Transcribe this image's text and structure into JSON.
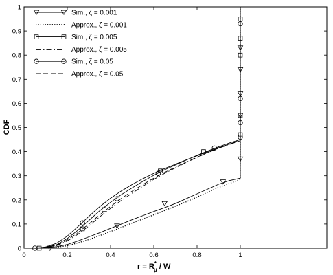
{
  "chart_data": {
    "type": "line",
    "title": "",
    "xlabel": {
      "main": "r = R",
      "sup": "*",
      "sub": "μ",
      "tail": " / W"
    },
    "ylabel": "CDF",
    "xlim": [
      0,
      1.4
    ],
    "ylim": [
      0,
      1
    ],
    "xticks": [
      0,
      0.2,
      0.4,
      0.6,
      0.8,
      1
    ],
    "xtick_labels": [
      "0",
      "0.2",
      "0.4",
      "0.6",
      "0.8",
      "1"
    ],
    "yticks": [
      0,
      0.1,
      0.2,
      0.3,
      0.4,
      0.5,
      0.6,
      0.7,
      0.8,
      0.9,
      1
    ],
    "ytick_labels": [
      "0",
      "0.1",
      "0.2",
      "0.3",
      "0.4",
      "0.5",
      "0.6",
      "0.7",
      "0.8",
      "0.9",
      "1"
    ],
    "grid": false,
    "legend_position": "top-left",
    "series": [
      {
        "name": "Sim., ζ = 0.001",
        "style": "solid",
        "marker": "triangle-down",
        "x": [
          0.05,
          0.1,
          0.15,
          0.2,
          0.25,
          0.3,
          0.35,
          0.4,
          0.45,
          0.5,
          0.55,
          0.6,
          0.65,
          0.7,
          0.75,
          0.8,
          0.85,
          0.9,
          0.95,
          1.0,
          1.0,
          1.0,
          1.0,
          1.0,
          1.0,
          1.0,
          1.0,
          1.0,
          1.0,
          1.0,
          1.0,
          1.0
        ],
        "y": [
          0.0,
          0.002,
          0.006,
          0.015,
          0.03,
          0.047,
          0.064,
          0.082,
          0.1,
          0.118,
          0.135,
          0.152,
          0.168,
          0.185,
          0.205,
          0.225,
          0.245,
          0.265,
          0.28,
          0.29,
          0.37,
          0.45,
          0.55,
          0.64,
          0.73,
          0.83,
          0.92,
          1.0,
          1.0,
          1.0,
          1.0,
          1.0
        ],
        "marker_x": [
          0.12,
          0.43,
          0.65,
          0.92,
          1.0,
          1.0,
          1.0,
          1.0,
          1.0
        ],
        "marker_y": [
          0.0,
          0.092,
          0.185,
          0.275,
          0.37,
          0.55,
          0.64,
          0.74,
          0.83
        ]
      },
      {
        "name": "Approx., ζ = 0.001",
        "style": "dotted",
        "marker": "none",
        "x": [
          0.05,
          0.1,
          0.15,
          0.2,
          0.25,
          0.3,
          0.35,
          0.4,
          0.45,
          0.5,
          0.55,
          0.6,
          0.65,
          0.7,
          0.75,
          0.8,
          0.85,
          0.9,
          0.95,
          1.0,
          1.0,
          1.0
        ],
        "y": [
          0.0,
          0.001,
          0.004,
          0.01,
          0.022,
          0.036,
          0.052,
          0.069,
          0.086,
          0.104,
          0.121,
          0.138,
          0.156,
          0.174,
          0.192,
          0.212,
          0.232,
          0.252,
          0.268,
          0.285,
          0.45,
          1.0
        ]
      },
      {
        "name": "Sim., ζ = 0.005",
        "style": "solid",
        "marker": "square",
        "x": [
          0.05,
          0.1,
          0.15,
          0.2,
          0.25,
          0.3,
          0.35,
          0.4,
          0.45,
          0.5,
          0.55,
          0.6,
          0.65,
          0.7,
          0.75,
          0.8,
          0.85,
          0.9,
          0.95,
          1.0,
          1.0,
          1.0,
          1.0,
          1.0,
          1.0,
          1.0
        ],
        "y": [
          0.0,
          0.003,
          0.014,
          0.04,
          0.075,
          0.115,
          0.155,
          0.19,
          0.222,
          0.25,
          0.277,
          0.302,
          0.325,
          0.345,
          0.365,
          0.385,
          0.403,
          0.42,
          0.436,
          0.45,
          0.47,
          0.55,
          0.64,
          0.74,
          0.85,
          1.0
        ],
        "marker_x": [
          0.07,
          0.27,
          0.37,
          0.63,
          0.83,
          1.0,
          1.0,
          1.0,
          1.0,
          1.0
        ],
        "marker_y": [
          0.0,
          0.08,
          0.16,
          0.32,
          0.4,
          0.47,
          0.55,
          0.8,
          0.87,
          0.95
        ]
      },
      {
        "name": "Approx., ζ = 0.005",
        "style": "dashdot",
        "marker": "none",
        "x": [
          0.05,
          0.1,
          0.15,
          0.2,
          0.25,
          0.3,
          0.35,
          0.4,
          0.45,
          0.5,
          0.55,
          0.6,
          0.65,
          0.7,
          0.75,
          0.8,
          0.85,
          0.9,
          0.95,
          1.0,
          1.0,
          1.0
        ],
        "y": [
          0.0,
          0.002,
          0.01,
          0.03,
          0.058,
          0.092,
          0.13,
          0.165,
          0.198,
          0.228,
          0.257,
          0.285,
          0.31,
          0.333,
          0.355,
          0.376,
          0.396,
          0.414,
          0.43,
          0.445,
          0.6,
          1.0
        ]
      },
      {
        "name": "Sim., ζ = 0.05",
        "style": "solid",
        "marker": "circle",
        "x": [
          0.05,
          0.1,
          0.15,
          0.2,
          0.25,
          0.3,
          0.35,
          0.4,
          0.45,
          0.5,
          0.55,
          0.6,
          0.65,
          0.7,
          0.75,
          0.8,
          0.85,
          0.9,
          0.95,
          1.0,
          1.0,
          1.0,
          1.0,
          1.0,
          1.0,
          1.0
        ],
        "y": [
          0.0,
          0.005,
          0.02,
          0.05,
          0.09,
          0.132,
          0.172,
          0.207,
          0.237,
          0.264,
          0.288,
          0.31,
          0.33,
          0.348,
          0.366,
          0.383,
          0.4,
          0.416,
          0.432,
          0.445,
          0.46,
          0.52,
          0.62,
          0.82,
          0.93,
          1.0
        ],
        "marker_x": [
          0.05,
          0.27,
          0.43,
          0.62,
          0.88,
          1.0,
          1.0,
          1.0,
          1.0
        ],
        "marker_y": [
          0.0,
          0.105,
          0.205,
          0.31,
          0.415,
          0.46,
          0.52,
          0.62,
          0.93
        ]
      },
      {
        "name": "Approx., ζ = 0.05",
        "style": "dashed",
        "marker": "none",
        "x": [
          0.05,
          0.1,
          0.15,
          0.2,
          0.25,
          0.3,
          0.35,
          0.4,
          0.45,
          0.5,
          0.55,
          0.6,
          0.65,
          0.7,
          0.75,
          0.8,
          0.85,
          0.9,
          0.95,
          1.0,
          1.0,
          1.0
        ],
        "y": [
          0.0,
          0.002,
          0.012,
          0.034,
          0.065,
          0.1,
          0.138,
          0.173,
          0.206,
          0.236,
          0.264,
          0.29,
          0.314,
          0.336,
          0.357,
          0.377,
          0.397,
          0.415,
          0.432,
          0.447,
          0.6,
          1.0
        ]
      }
    ]
  }
}
